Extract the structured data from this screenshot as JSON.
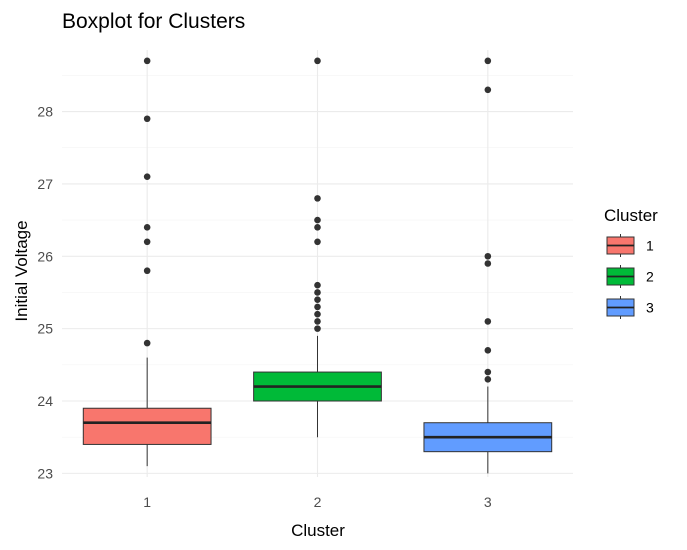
{
  "chart_data": {
    "type": "boxplot",
    "title": "Boxplot for Clusters",
    "xlabel": "Cluster",
    "ylabel": "Initial Voltage",
    "categories": [
      "1",
      "2",
      "3"
    ],
    "ylim": [
      22.95,
      28.85
    ],
    "yticks": [
      23,
      24,
      25,
      26,
      27,
      28
    ],
    "grid": true,
    "legend": {
      "title": "Cluster",
      "position": "right",
      "entries": [
        "1",
        "2",
        "3"
      ]
    },
    "series": [
      {
        "category": "1",
        "color": "#F8766D",
        "whisker_low": 23.1,
        "q1": 23.4,
        "median": 23.7,
        "q3": 23.9,
        "whisker_high": 24.6,
        "outliers": [
          24.8,
          25.8,
          26.2,
          26.4,
          27.1,
          27.9,
          28.7
        ]
      },
      {
        "category": "2",
        "color": "#00BA38",
        "whisker_low": 23.5,
        "q1": 24.0,
        "median": 24.2,
        "q3": 24.4,
        "whisker_high": 24.9,
        "outliers": [
          25.0,
          25.1,
          25.2,
          25.3,
          25.4,
          25.5,
          25.6,
          26.2,
          26.4,
          26.5,
          26.8,
          28.7
        ]
      },
      {
        "category": "3",
        "color": "#619CFF",
        "whisker_low": 23.0,
        "q1": 23.3,
        "median": 23.5,
        "q3": 23.7,
        "whisker_high": 24.2,
        "outliers": [
          24.3,
          24.4,
          24.7,
          25.1,
          25.9,
          26.0,
          28.3,
          28.7
        ]
      }
    ]
  }
}
